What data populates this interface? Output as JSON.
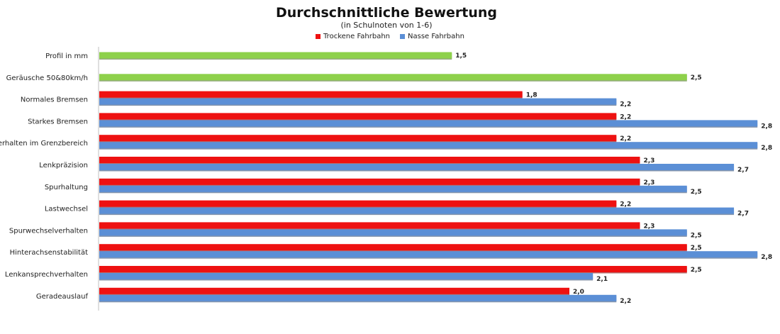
{
  "chart_data": {
    "type": "bar",
    "orientation": "horizontal",
    "title": "Durchschnittliche Bewertung",
    "subtitle": "(in Schulnoten von 1-6)",
    "legend_position": "top",
    "xlim": [
      0,
      2.9
    ],
    "grid": false,
    "categories": [
      "Profil in mm",
      "Geräusche 50&80km/h",
      "Normales Bremsen",
      "Starkes Bremsen",
      "Verhalten im Grenzbereich",
      "Lenkpräzision",
      "Spurhaltung",
      "Lastwechsel",
      "Spurwechselverhalten",
      "Hinterachsenstabilität",
      "Lenkansprechverhalten",
      "Geradeauslauf"
    ],
    "combined": {
      "color": "#8ed14b",
      "values": [
        1.5,
        2.5,
        null,
        null,
        null,
        null,
        null,
        null,
        null,
        null,
        null,
        null
      ],
      "labels": [
        "1,5",
        "2,5",
        null,
        null,
        null,
        null,
        null,
        null,
        null,
        null,
        null,
        null
      ]
    },
    "series": [
      {
        "name": "Trockene Fahrbahn",
        "color": "#ee1111",
        "values": [
          null,
          null,
          1.8,
          2.2,
          2.2,
          2.3,
          2.3,
          2.2,
          2.3,
          2.5,
          2.5,
          2.0
        ],
        "labels": [
          null,
          null,
          "1,8",
          "2,2",
          "2,2",
          "2,3",
          "2,3",
          "2,2",
          "2,3",
          "2,5",
          "2,5",
          "2,0"
        ]
      },
      {
        "name": "Nasse Fahrbahn",
        "color": "#5b8fd6",
        "values": [
          null,
          null,
          2.2,
          2.8,
          2.8,
          2.7,
          2.5,
          2.7,
          2.5,
          2.8,
          2.1,
          2.2
        ],
        "labels": [
          null,
          null,
          "2,2",
          "2,8",
          "2,8",
          "2,7",
          "2,5",
          "2,7",
          "2,5",
          "2,8",
          "2,1",
          "2,2"
        ]
      }
    ]
  }
}
